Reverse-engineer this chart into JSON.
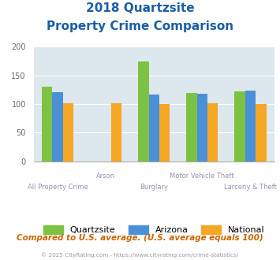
{
  "title_line1": "2018 Quartzsite",
  "title_line2": "Property Crime Comparison",
  "categories": [
    "All Property Crime",
    "Arson",
    "Burglary",
    "Motor Vehicle Theft",
    "Larceny & Theft"
  ],
  "cat_row": [
    1,
    0,
    1,
    0,
    1
  ],
  "series": {
    "Quartzsite": [
      130,
      0,
      174,
      119,
      122
    ],
    "Arizona": [
      121,
      0,
      117,
      118,
      124
    ],
    "National": [
      101,
      101,
      100,
      101,
      100
    ]
  },
  "colors": {
    "Quartzsite": "#7DC242",
    "Arizona": "#4A90D9",
    "National": "#F5A623"
  },
  "ylim": [
    0,
    200
  ],
  "yticks": [
    0,
    50,
    100,
    150,
    200
  ],
  "plot_bg": "#DCE8EE",
  "title_color": "#1B5EA6",
  "xlabel_color": "#9B8DB5",
  "footer_text": "Compared to U.S. average. (U.S. average equals 100)",
  "footer_color": "#CC6600",
  "copyright_text": "© 2025 CityRating.com - https://www.cityrating.com/crime-statistics/",
  "copyright_color": "#999999",
  "bar_width": 0.22
}
